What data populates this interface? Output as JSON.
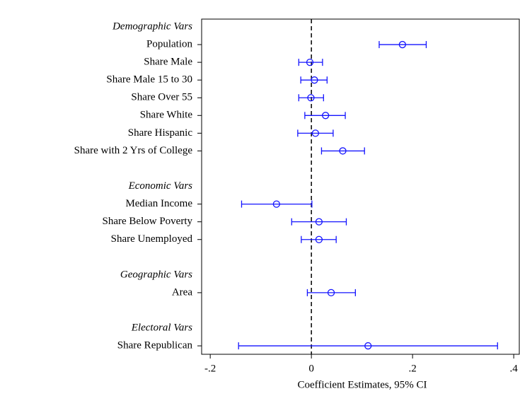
{
  "chart_data": {
    "type": "coefplot",
    "x_label": "Coefficient Estimates, 95% CI",
    "color": "#1414ff",
    "xlim": [
      -0.217,
      0.411
    ],
    "xticks": [
      {
        "value": -0.2,
        "label": "-.2"
      },
      0,
      {
        "value": 0.2,
        "label": ".2"
      },
      {
        "value": 0.4,
        "label": ".4"
      }
    ],
    "reference_line": 0,
    "groups": [
      {
        "name": "Demographic Vars",
        "categories": [
          "Population",
          "Share Male",
          "Share Male 15 to 30",
          "Share Over 55",
          "Share White",
          "Share Hispanic",
          "Share with 2 Yrs of College"
        ],
        "values": [
          0.18,
          -0.003,
          0.006,
          -0.001,
          0.028,
          0.008,
          0.062
        ],
        "lower": [
          0.134,
          -0.025,
          -0.021,
          -0.025,
          -0.013,
          -0.027,
          0.02
        ],
        "upper": [
          0.227,
          0.022,
          0.031,
          0.024,
          0.067,
          0.043,
          0.105
        ]
      },
      {
        "name": "Economic Vars",
        "categories": [
          "Median Income",
          "Share Below Poverty",
          "Share Unemployed"
        ],
        "values": [
          -0.069,
          0.015,
          0.015
        ],
        "lower": [
          -0.138,
          -0.039,
          -0.02
        ],
        "upper": [
          0.001,
          0.069,
          0.049
        ]
      },
      {
        "name": "Geographic Vars",
        "categories": [
          "Area"
        ],
        "values": [
          0.039
        ],
        "lower": [
          -0.008
        ],
        "upper": [
          0.087
        ]
      },
      {
        "name": "Electoral Vars",
        "categories": [
          "Share Republican"
        ],
        "values": [
          0.112
        ],
        "lower": [
          -0.144
        ],
        "upper": [
          0.368
        ]
      }
    ]
  }
}
